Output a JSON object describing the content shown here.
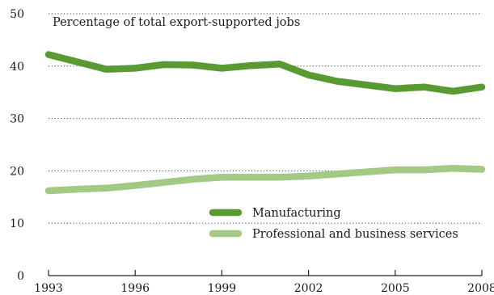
{
  "chart_data": {
    "type": "line",
    "title": "Percentage of total export-supported jobs",
    "x": [
      1993,
      1994,
      1995,
      1996,
      1997,
      1998,
      1999,
      2000,
      2001,
      2002,
      2003,
      2004,
      2005,
      2006,
      2007,
      2008
    ],
    "xticks": [
      1993,
      1996,
      1999,
      2002,
      2005,
      2008
    ],
    "xtick_labels": [
      "1993",
      "1996",
      "1999",
      "2002",
      "2005",
      "2008"
    ],
    "yticks": [
      0,
      10,
      20,
      30,
      40,
      50
    ],
    "ytick_labels": [
      "0",
      "10",
      "20",
      "30",
      "40",
      "50"
    ],
    "xlim": [
      1993,
      2008
    ],
    "ylim": [
      0,
      50
    ],
    "grid": "horizontal dotted",
    "legend_position": "center-right",
    "series": [
      {
        "name": "Manufacturing",
        "color": "#5a9a32",
        "values": [
          42.2,
          40.8,
          39.4,
          39.6,
          40.3,
          40.2,
          39.6,
          40.1,
          40.4,
          38.3,
          37.1,
          36.4,
          35.7,
          36.0,
          35.2,
          36.0
        ]
      },
      {
        "name": "Professional and business services",
        "color": "#a3c985",
        "values": [
          16.2,
          16.5,
          16.7,
          17.2,
          17.8,
          18.4,
          18.8,
          18.8,
          18.8,
          19.0,
          19.4,
          19.8,
          20.2,
          20.2,
          20.5,
          20.3
        ]
      }
    ]
  }
}
